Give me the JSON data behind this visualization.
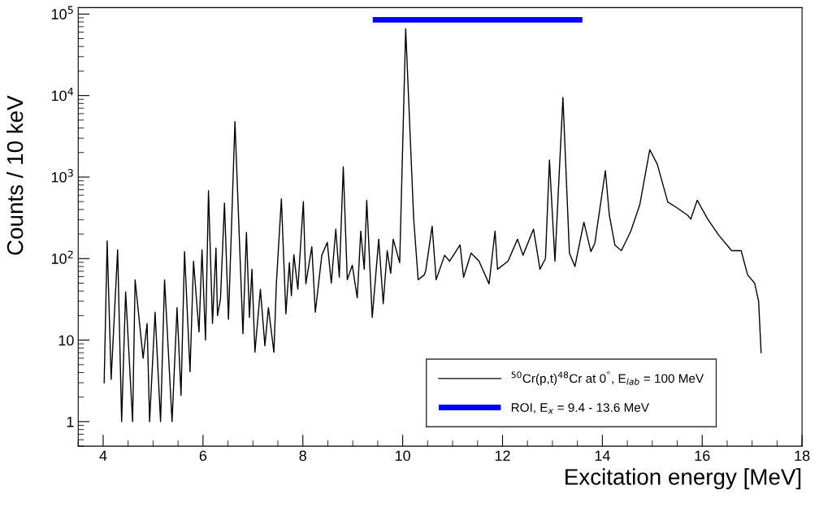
{
  "chart_data": {
    "type": "step",
    "xlabel": "Excitation energy [MeV]",
    "ylabel": "Counts / 10 keV",
    "xlim": [
      3.5,
      18
    ],
    "xticks": [
      4,
      6,
      8,
      10,
      12,
      14,
      16,
      18
    ],
    "ylim": [
      0.5,
      120000
    ],
    "yticks": [
      {
        "value": 1,
        "label": "1"
      },
      {
        "value": 10,
        "label": "10"
      },
      {
        "value": 100,
        "label": "10$^{2}$"
      },
      {
        "value": 1000,
        "label": "10$^{3}$"
      },
      {
        "value": 10000,
        "label": "10$^{4}$"
      },
      {
        "value": 100000,
        "label": "10$^{5}$"
      }
    ],
    "log": "y",
    "grid": false,
    "legend": "bottom right",
    "series": [
      {
        "name": "$^{50}$Cr(p,t)$^{48}$Cr at 0$^{°}$, E$_{lab}$ = 100 MeV",
        "color": "#000000",
        "x": [
          4.02,
          4.08,
          4.16,
          4.29,
          4.37,
          4.45,
          4.59,
          4.64,
          4.8,
          4.88,
          4.93,
          5.04,
          5.15,
          5.23,
          5.38,
          5.48,
          5.56,
          5.63,
          5.74,
          5.81,
          5.92,
          5.98,
          6.05,
          6.11,
          6.19,
          6.26,
          6.29,
          6.35,
          6.43,
          6.51,
          6.64,
          6.8,
          6.87,
          6.93,
          6.98,
          7.04,
          7.15,
          7.24,
          7.31,
          7.42,
          7.47,
          7.57,
          7.66,
          7.73,
          7.77,
          7.82,
          7.9,
          8.01,
          8.06,
          8.18,
          8.25,
          8.38,
          8.49,
          8.57,
          8.66,
          8.73,
          8.81,
          8.89,
          8.99,
          9.09,
          9.16,
          9.23,
          9.28,
          9.39,
          9.52,
          9.61,
          9.69,
          9.76,
          9.81,
          9.94,
          10.06,
          10.22,
          10.31,
          10.43,
          10.46,
          10.59,
          10.67,
          10.84,
          10.94,
          11.15,
          11.22,
          11.37,
          11.53,
          11.73,
          11.85,
          11.9,
          12.11,
          12.3,
          12.41,
          12.62,
          12.75,
          12.86,
          12.94,
          13.05,
          13.21,
          13.34,
          13.45,
          13.63,
          13.77,
          13.85,
          14.06,
          14.14,
          14.25,
          14.38,
          14.57,
          14.75,
          14.95,
          15.1,
          15.31,
          15.47,
          15.71,
          15.77,
          15.9,
          16.11,
          16.33,
          16.59,
          16.78,
          16.91,
          17.05,
          17.13,
          17.18
        ],
        "values": [
          3,
          165,
          3.3,
          128,
          1,
          39,
          1,
          55,
          6,
          16,
          1,
          22,
          1,
          55,
          1,
          25,
          2.1,
          122,
          4.1,
          93,
          12.6,
          128,
          10,
          680,
          16,
          135,
          20,
          32,
          480,
          18,
          4800,
          12,
          210,
          19,
          74,
          7.1,
          42,
          8.5,
          25,
          7.1,
          50,
          540,
          21,
          89,
          35,
          112,
          42,
          500,
          49,
          140,
          22,
          110,
          158,
          50,
          230,
          59,
          1340,
          55,
          83,
          33,
          217,
          74,
          520,
          19,
          173,
          28,
          125,
          66,
          173,
          89,
          66000,
          310,
          55,
          63,
          70,
          250,
          55,
          110,
          93,
          147,
          59,
          117,
          93,
          49,
          217,
          74,
          93,
          173,
          110,
          230,
          74,
          100,
          1620,
          93,
          9500,
          117,
          80,
          280,
          122,
          155,
          1200,
          340,
          147,
          125,
          217,
          460,
          2170,
          1440,
          495,
          430,
          340,
          305,
          520,
          305,
          194,
          125,
          125,
          63,
          50,
          30,
          7
        ]
      },
      {
        "name": "ROI, E$_{x}$ = 9.4 - 13.6 MeV",
        "color": "#0000ff",
        "type": "line",
        "x": [
          9.4,
          13.6
        ],
        "values": [
          85000,
          85000
        ]
      }
    ]
  }
}
